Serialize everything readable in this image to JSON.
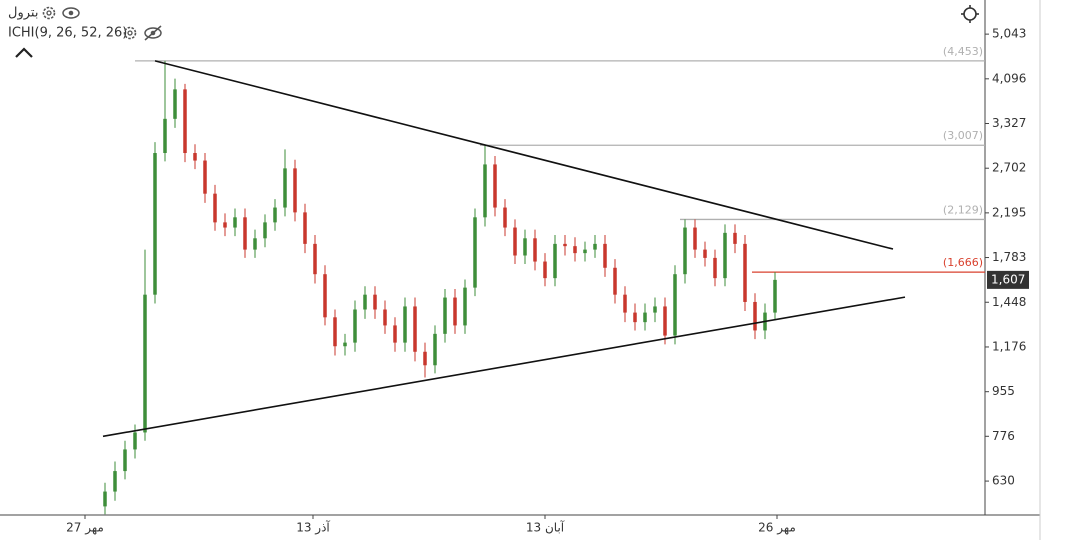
{
  "chart_data": {
    "type": "candlestick",
    "title": "بترول",
    "indicator": "ICHI(9, 26, 52, 26)",
    "log_scale": true,
    "up_color": "#3e8e3a",
    "down_color": "#c8372d",
    "open": [
      560,
      600,
      660,
      730,
      790,
      1500,
      2900,
      3400,
      3900,
      2900,
      2800,
      2400,
      2100,
      2050,
      2150,
      1850,
      1950,
      2100,
      2250,
      2700,
      2200,
      1900,
      1650,
      1350,
      1180,
      1200,
      1400,
      1500,
      1400,
      1300,
      1200,
      1420,
      1150,
      1080,
      1250,
      1480,
      1300,
      1550,
      2150,
      2750,
      2250,
      2050,
      1800,
      1950,
      1750,
      1620,
      1900,
      1880,
      1820,
      1850,
      1900,
      1700,
      1500,
      1380,
      1320,
      1380,
      1420,
      1240,
      1650,
      2050,
      1850,
      1780,
      1620,
      2000,
      1900,
      1450,
      1270,
      1380
    ],
    "high": [
      625,
      690,
      760,
      820,
      1850,
      3050,
      4453,
      4100,
      4000,
      3020,
      2900,
      2500,
      2190,
      2240,
      2240,
      2030,
      2180,
      2340,
      2950,
      2810,
      2290,
      1980,
      1720,
      1400,
      1250,
      1460,
      1560,
      1560,
      1460,
      1350,
      1480,
      1480,
      1200,
      1300,
      1540,
      1540,
      1610,
      2240,
      3007,
      2860,
      2340,
      2130,
      2030,
      2030,
      1820,
      1980,
      1980,
      1960,
      1920,
      1980,
      1980,
      1770,
      1560,
      1440,
      1440,
      1480,
      1480,
      1720,
      2129,
      2130,
      1920,
      1850,
      2080,
      2080,
      1980,
      1510,
      1440,
      1666
    ],
    "low": [
      540,
      575,
      635,
      700,
      760,
      1440,
      2790,
      3260,
      2780,
      2690,
      2300,
      2020,
      1970,
      1970,
      1780,
      1780,
      1870,
      2020,
      2160,
      2110,
      1820,
      1580,
      1300,
      1130,
      1130,
      1150,
      1340,
      1340,
      1250,
      1150,
      1150,
      1100,
      1020,
      1040,
      1200,
      1250,
      1250,
      1490,
      2060,
      2160,
      1970,
      1730,
      1730,
      1680,
      1560,
      1560,
      1800,
      1750,
      1750,
      1780,
      1630,
      1440,
      1320,
      1270,
      1270,
      1320,
      1190,
      1190,
      1580,
      1780,
      1710,
      1560,
      1560,
      1820,
      1390,
      1220,
      1220,
      1330
    ],
    "close": [
      600,
      660,
      730,
      790,
      1500,
      2900,
      3400,
      3900,
      2900,
      2800,
      2400,
      2100,
      2050,
      2150,
      1850,
      1950,
      2100,
      2250,
      2700,
      2200,
      1900,
      1650,
      1350,
      1180,
      1200,
      1400,
      1500,
      1400,
      1300,
      1200,
      1420,
      1150,
      1080,
      1250,
      1480,
      1300,
      1550,
      2150,
      2750,
      2250,
      2050,
      1800,
      1950,
      1750,
      1620,
      1900,
      1880,
      1820,
      1850,
      1900,
      1700,
      1500,
      1380,
      1320,
      1380,
      1420,
      1240,
      1650,
      2050,
      1850,
      1780,
      1620,
      2000,
      1900,
      1450,
      1270,
      1380,
      1607
    ],
    "xlim": [
      -10.5,
      88
    ],
    "xticks": [
      {
        "value": -2,
        "label": "27 مهر"
      },
      {
        "value": 20.8,
        "label": "13 آذر"
      },
      {
        "value": 44,
        "label": "13 آبان"
      },
      {
        "value": 67.2,
        "label": "26 مهر"
      }
    ],
    "ylim": [
      538,
      5911
    ],
    "yticks": [
      {
        "value": 5043,
        "label": "5,043"
      },
      {
        "value": 4096,
        "label": "4,096"
      },
      {
        "value": 3327,
        "label": "3,327"
      },
      {
        "value": 2702,
        "label": "2,702"
      },
      {
        "value": 2195,
        "label": "2,195"
      },
      {
        "value": 1783,
        "label": "1,783"
      },
      {
        "value": 1448,
        "label": "1,448"
      },
      {
        "value": 1176,
        "label": "1,176"
      },
      955,
      776,
      630
    ],
    "levels": [
      {
        "value": 4453,
        "label": "(4,453)",
        "from": 3,
        "color": "#b0b0b0"
      },
      {
        "value": 3007,
        "label": "(3,007)",
        "from": 37.5,
        "color": "#b0b0b0"
      },
      {
        "value": 2129,
        "label": "(2,129)",
        "from": 57.5,
        "color": "#b0b0b0"
      },
      {
        "value": 1666,
        "label": "(1,666)",
        "from": 64.7,
        "color": "#d9412e"
      }
    ],
    "trendlines": [
      {
        "x": [
          5,
          78.8
        ],
        "y": [
          4453,
          1855
        ],
        "color": "#111111"
      },
      {
        "x": [
          -0.2,
          80
        ],
        "y": [
          776,
          1483
        ],
        "color": "#111111"
      }
    ],
    "last": {
      "value": 1607,
      "label": "1,607"
    }
  }
}
